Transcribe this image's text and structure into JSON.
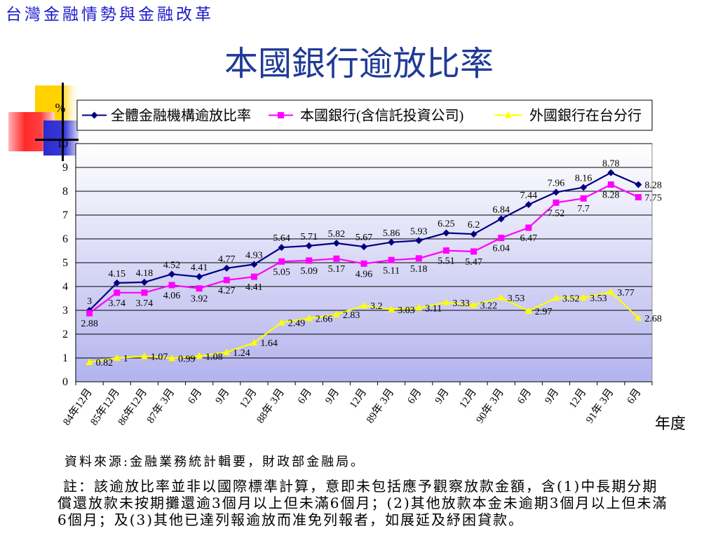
{
  "header": {
    "deck_title": "台灣金融情勢與金融改革"
  },
  "slide": {
    "title": "本國銀行逾放比率"
  },
  "theme": {
    "deck_title_color": "#1a1acc",
    "slide_title_color": "#203a96"
  },
  "chart_data": {
    "type": "line",
    "xlabel": "年度",
    "ylabel": "%",
    "ylim": [
      0,
      10
    ],
    "yticks": [
      0,
      1,
      2,
      3,
      4,
      5,
      6,
      7,
      8,
      9,
      10
    ],
    "grid": true,
    "legend": "top",
    "categories": [
      "84年12月",
      "85年12月",
      "86年12月",
      "87年 3月",
      "6月",
      "9月",
      "12月",
      "88年 3月",
      "6月",
      "9月",
      "12月",
      "89年 3月",
      "6月",
      "9月",
      "12月",
      "90年 3月",
      "6月",
      "9月",
      "12月",
      "91年 3月",
      "6月"
    ],
    "series": [
      {
        "name": "全體金融機構逾放比率",
        "color": "#000080",
        "marker": "diamond",
        "values": [
          3,
          4.15,
          4.18,
          4.52,
          4.41,
          4.77,
          4.93,
          5.64,
          5.71,
          5.82,
          5.67,
          5.86,
          5.93,
          6.25,
          6.2,
          6.84,
          7.44,
          7.96,
          8.16,
          8.78,
          8.28
        ]
      },
      {
        "name": "本國銀行(含信託投資公司)",
        "color": "#ff00ff",
        "marker": "square",
        "values": [
          2.88,
          3.74,
          3.74,
          4.06,
          3.92,
          4.27,
          4.41,
          5.05,
          5.09,
          5.17,
          4.96,
          5.11,
          5.18,
          5.51,
          5.47,
          6.04,
          6.47,
          7.52,
          7.7,
          8.28,
          7.75
        ]
      },
      {
        "name": "外國銀行在台分行",
        "color": "#ffff00",
        "marker": "triangle",
        "values": [
          0.82,
          1,
          1.07,
          0.99,
          1.08,
          1.24,
          1.64,
          2.49,
          2.66,
          2.83,
          3.2,
          3.03,
          3.11,
          3.33,
          3.22,
          3.53,
          2.97,
          3.52,
          3.53,
          3.77,
          2.68
        ]
      }
    ]
  },
  "footer": {
    "source": "資料來源:金融業務統計輯要，財政部金融局。",
    "note_lines": [
      "註：該逾放比率並非以國際標準計算，意即未包括應予觀察放款金額，含(1)中長期分期",
      "償還放款未按期攤還逾3個月以上但未滿6個月；(2)其他放款本金未逾期3個月以上但未滿",
      "6個月；及(3)其他已達列報逾放而准免列報者，如展延及紓困貸款。"
    ]
  }
}
